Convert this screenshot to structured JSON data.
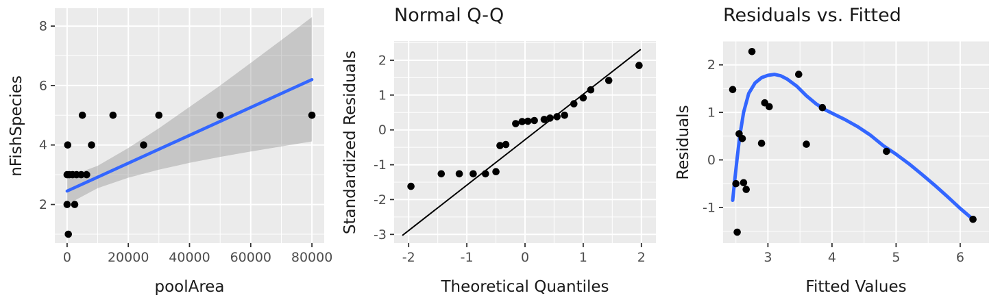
{
  "theme": {
    "page_background": "#FFFFFF",
    "panel_background": "#EBEBEB",
    "grid_color": "#FFFFFF",
    "tick_mark_color": "#333333",
    "tick_label_color": "#4D4D4D",
    "title_color": "#1A1A1A",
    "point_color": "#000000",
    "smooth_color": "#3366FF",
    "ribbon_color": "#808080",
    "ribbon_opacity": 0.35
  },
  "chart_data": [
    {
      "type": "scatter",
      "title": "",
      "xlabel": "poolArea",
      "ylabel": "nFishSpecies",
      "xlim": [
        -4000,
        84000
      ],
      "ylim": [
        0.7,
        8.6
      ],
      "xticks": [
        0,
        20000,
        40000,
        60000,
        80000
      ],
      "yticks": [
        2,
        4,
        6,
        8
      ],
      "grid": true,
      "legend": "none",
      "points": [
        [
          400,
          1
        ],
        [
          0,
          2
        ],
        [
          2500,
          2
        ],
        [
          0,
          3
        ],
        [
          700,
          3
        ],
        [
          1800,
          3
        ],
        [
          3100,
          3
        ],
        [
          4600,
          3
        ],
        [
          6400,
          3
        ],
        [
          200,
          4
        ],
        [
          8000,
          4
        ],
        [
          25000,
          4
        ],
        [
          5000,
          5
        ],
        [
          15000,
          5
        ],
        [
          30000,
          5
        ],
        [
          50000,
          5
        ],
        [
          80000,
          5
        ]
      ],
      "ribbon": {
        "x": [
          0,
          10000,
          20000,
          30000,
          40000,
          50000,
          60000,
          70000,
          80000
        ],
        "upper": [
          2.92,
          3.3,
          3.9,
          4.56,
          5.28,
          6.0,
          6.76,
          7.53,
          8.3
        ],
        "lower": [
          2.0,
          2.55,
          2.9,
          3.17,
          3.4,
          3.6,
          3.78,
          3.95,
          4.12
        ]
      },
      "lines": [
        {
          "name": "regression-line",
          "color": "#3366FF",
          "width": 4.5,
          "points": [
            [
              0,
              2.45
            ],
            [
              80000,
              6.2
            ]
          ]
        }
      ]
    },
    {
      "type": "scatter",
      "title": "Normal Q-Q",
      "xlabel": "Theoretical Quantiles",
      "ylabel": "Standardized Residuals",
      "xlim": [
        -2.25,
        2.25
      ],
      "ylim": [
        -3.25,
        2.55
      ],
      "xticks": [
        -2,
        -1,
        0,
        1,
        2
      ],
      "yticks": [
        -3,
        -2,
        -1,
        0,
        1,
        2
      ],
      "grid": true,
      "legend": "none",
      "points": [
        [
          -1.96,
          -1.62
        ],
        [
          -1.44,
          -1.26
        ],
        [
          -1.13,
          -1.26
        ],
        [
          -0.89,
          -1.26
        ],
        [
          -0.68,
          -1.26
        ],
        [
          -0.5,
          -1.2
        ],
        [
          -0.43,
          -0.45
        ],
        [
          -0.33,
          -0.42
        ],
        [
          -0.16,
          0.18
        ],
        [
          -0.05,
          0.24
        ],
        [
          0.05,
          0.25
        ],
        [
          0.16,
          0.27
        ],
        [
          0.33,
          0.3
        ],
        [
          0.43,
          0.34
        ],
        [
          0.55,
          0.38
        ],
        [
          0.68,
          0.42
        ],
        [
          0.84,
          0.75
        ],
        [
          1.0,
          0.92
        ],
        [
          1.13,
          1.15
        ],
        [
          1.44,
          1.42
        ],
        [
          1.96,
          1.85
        ]
      ],
      "lines": [
        {
          "name": "qq-line",
          "color": "#000000",
          "width": 2,
          "points": [
            [
              -2.1,
              -3.02
            ],
            [
              1.98,
              2.3
            ]
          ]
        }
      ]
    },
    {
      "type": "scatter",
      "title": "Residuals vs. Fitted",
      "xlabel": "Fitted Values",
      "ylabel": "Residuals",
      "xlim": [
        2.3,
        6.45
      ],
      "ylim": [
        -1.75,
        2.5
      ],
      "xticks": [
        3,
        4,
        5,
        6
      ],
      "yticks": [
        -1,
        0,
        1,
        2
      ],
      "grid": true,
      "legend": "none",
      "points": [
        [
          2.45,
          1.48
        ],
        [
          2.5,
          -0.5
        ],
        [
          2.52,
          -1.52
        ],
        [
          2.55,
          0.55
        ],
        [
          2.6,
          0.45
        ],
        [
          2.62,
          -0.48
        ],
        [
          2.66,
          -0.62
        ],
        [
          2.75,
          2.28
        ],
        [
          2.9,
          0.35
        ],
        [
          2.95,
          1.2
        ],
        [
          3.02,
          1.12
        ],
        [
          3.48,
          1.8
        ],
        [
          3.6,
          0.33
        ],
        [
          3.85,
          1.1
        ],
        [
          4.85,
          0.18
        ],
        [
          6.2,
          -1.25
        ]
      ],
      "lines": [
        {
          "name": "loess-curve",
          "color": "#3366FF",
          "width": 5,
          "points": [
            [
              2.45,
              -0.85
            ],
            [
              2.48,
              -0.45
            ],
            [
              2.52,
              0.05
            ],
            [
              2.56,
              0.5
            ],
            [
              2.62,
              1.0
            ],
            [
              2.7,
              1.4
            ],
            [
              2.8,
              1.62
            ],
            [
              2.9,
              1.73
            ],
            [
              3.0,
              1.78
            ],
            [
              3.1,
              1.8
            ],
            [
              3.2,
              1.77
            ],
            [
              3.3,
              1.7
            ],
            [
              3.45,
              1.55
            ],
            [
              3.6,
              1.35
            ],
            [
              3.75,
              1.18
            ],
            [
              3.9,
              1.05
            ],
            [
              4.05,
              0.95
            ],
            [
              4.2,
              0.85
            ],
            [
              4.4,
              0.7
            ],
            [
              4.6,
              0.52
            ],
            [
              4.8,
              0.3
            ],
            [
              5.0,
              0.12
            ],
            [
              5.2,
              -0.08
            ],
            [
              5.4,
              -0.3
            ],
            [
              5.6,
              -0.53
            ],
            [
              5.8,
              -0.77
            ],
            [
              6.0,
              -1.02
            ],
            [
              6.2,
              -1.25
            ]
          ]
        }
      ]
    }
  ]
}
